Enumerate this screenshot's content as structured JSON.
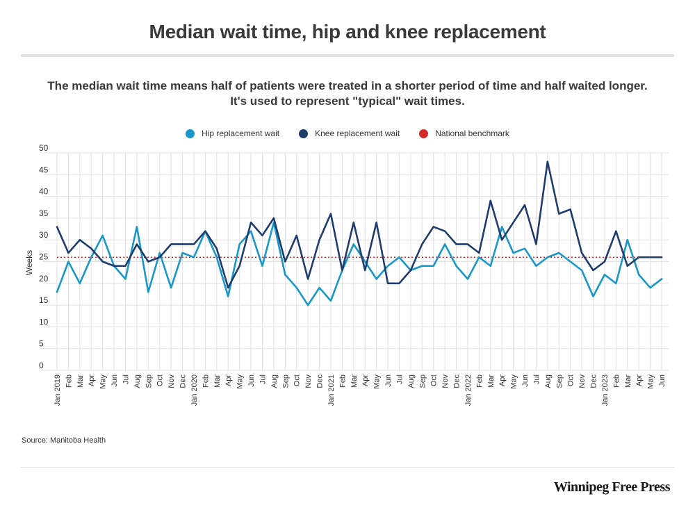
{
  "title": "Median wait time, hip and knee replacement",
  "subtitle_line1": "The median wait time means half of patients were treated in a shorter period of time and half waited longer.",
  "subtitle_line2": "It's used to represent \"typical\" wait times.",
  "source": "Source: Manitoba Health",
  "brand": "Winnipeg Free Press",
  "colors": {
    "hip": "#1897c8",
    "knee": "#1f3c6e",
    "benchmark": "#d62828",
    "grid": "#e0e0e0"
  },
  "chart_data": {
    "type": "line",
    "ylabel": "Weeks",
    "xlabel": "",
    "ylim": [
      0,
      50
    ],
    "yticks": [
      0,
      5,
      10,
      15,
      20,
      25,
      30,
      35,
      40,
      45,
      50
    ],
    "grid": true,
    "legend_position": "top-center",
    "x": [
      "Jan 2019",
      "Feb",
      "Mar",
      "Apr",
      "May",
      "Jun",
      "Jul",
      "Aug",
      "Sep",
      "Oct",
      "Nov",
      "Dec",
      "Jan 2020",
      "Feb",
      "Mar",
      "Apr",
      "May",
      "Jun",
      "Jul",
      "Aug",
      "Sep",
      "Oct",
      "Nov",
      "Dec",
      "Jan 2021",
      "Feb",
      "Mar",
      "Apr",
      "May",
      "Jun",
      "Jul",
      "Aug",
      "Sep",
      "Oct",
      "Nov",
      "Dec",
      "Jan 2022",
      "Feb",
      "Mar",
      "Apr",
      "May",
      "Jun",
      "Jul",
      "Aug",
      "Sep",
      "Oct",
      "Nov",
      "Dec",
      "Jan 2023",
      "Feb",
      "Mar",
      "Apr",
      "May",
      "Jun"
    ],
    "series": [
      {
        "name": "Hip replacement wait",
        "values": [
          18,
          25,
          20,
          26,
          31,
          24,
          21,
          33,
          18,
          27,
          19,
          27,
          26,
          32,
          26,
          17,
          29,
          32,
          24,
          34,
          22,
          19,
          15,
          19,
          16,
          23,
          29,
          25,
          21,
          24,
          26,
          23,
          24,
          24,
          29,
          24,
          21,
          26,
          24,
          33,
          27,
          28,
          24,
          26,
          27,
          25,
          23,
          17,
          22,
          20,
          30,
          22,
          19,
          21
        ]
      },
      {
        "name": "Knee replacement wait",
        "values": [
          33,
          27,
          30,
          28,
          25,
          24,
          24,
          29,
          25,
          26,
          29,
          29,
          29,
          32,
          28,
          19,
          24,
          34,
          31,
          35,
          25,
          31,
          21,
          30,
          36,
          23,
          34,
          23,
          34,
          20,
          20,
          23,
          29,
          33,
          32,
          29,
          29,
          27,
          39,
          30,
          34,
          38,
          29,
          48,
          36,
          37,
          27,
          23,
          25,
          32,
          24,
          26,
          26,
          26
        ]
      },
      {
        "name": "National benchmark",
        "constant": 26
      }
    ]
  }
}
